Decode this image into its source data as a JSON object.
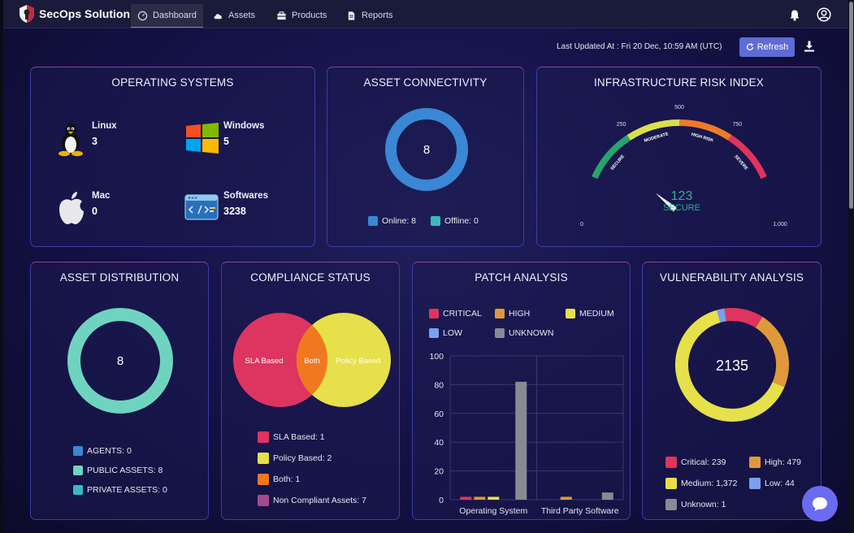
{
  "app": {
    "name": "SecOps Solution"
  },
  "nav": {
    "items": [
      {
        "label": "Dashboard",
        "icon": "gauge-icon"
      },
      {
        "label": "Assets",
        "icon": "cloud-icon"
      },
      {
        "label": "Products",
        "icon": "box-icon"
      },
      {
        "label": "Reports",
        "icon": "document-icon"
      }
    ]
  },
  "header": {
    "last_updated": "Last Updated At : Fri 20 Dec, 10:59 AM (UTC)",
    "refresh_label": "Refresh"
  },
  "operating_systems": {
    "title": "OPERATING SYSTEMS",
    "items": [
      {
        "name": "Linux",
        "count": "3",
        "icon": "linux-icon"
      },
      {
        "name": "Windows",
        "count": "5",
        "icon": "windows-icon"
      },
      {
        "name": "Mac",
        "count": "0",
        "icon": "apple-icon"
      },
      {
        "name": "Softwares",
        "count": "3238",
        "icon": "code-window-icon"
      }
    ]
  },
  "asset_connectivity": {
    "title": "ASSET CONNECTIVITY",
    "total": "8",
    "legend": [
      {
        "label": "Online: 8",
        "color": "#3a87d4",
        "value": 8
      },
      {
        "label": "Offline: 0",
        "color": "#3ab8b8",
        "value": 0
      }
    ]
  },
  "risk_index": {
    "title": "INFRASTRUCTURE RISK INDEX",
    "value": 123,
    "value_text": "123",
    "status": "SECURE",
    "max": 1000,
    "ticks": [
      "0",
      "250",
      "500",
      "750",
      "1,000"
    ],
    "bands": [
      {
        "label": "SECURE",
        "color": "#27a36b"
      },
      {
        "label": "MODERATE",
        "color": "#d9e04a"
      },
      {
        "label": "HIGH RISK",
        "color": "#ee7b2a"
      },
      {
        "label": "SEVERE",
        "color": "#e0335e"
      }
    ]
  },
  "asset_distribution": {
    "title": "ASSET DISTRIBUTION",
    "total": "8",
    "legend": [
      {
        "label": "AGENTS: 0",
        "color": "#3a87d4"
      },
      {
        "label": "PUBLIC ASSETS: 8",
        "color": "#6fd4bf"
      },
      {
        "label": "PRIVATE ASSETS: 0",
        "color": "#3ab8c8"
      }
    ]
  },
  "compliance": {
    "title": "COMPLIANCE STATUS",
    "venn": {
      "left": "SLA Based",
      "middle": "Both",
      "right": "Policy Based"
    },
    "legend": [
      {
        "label": "SLA Based: 1",
        "color": "#e0335e"
      },
      {
        "label": "Policy Based: 2",
        "color": "#e6e04a"
      },
      {
        "label": "Both: 1",
        "color": "#f07820"
      },
      {
        "label": "Non Compliant Assets: 7",
        "color": "#a24a8c"
      }
    ]
  },
  "patch_analysis": {
    "title": "PATCH ANALYSIS",
    "legend": [
      {
        "label": "CRITICAL",
        "color": "#e0335e"
      },
      {
        "label": "HIGH",
        "color": "#e0993a"
      },
      {
        "label": "MEDIUM",
        "color": "#e6e04a"
      },
      {
        "label": "LOW",
        "color": "#7aa0f0"
      },
      {
        "label": "UNKNOWN",
        "color": "#8a8a92"
      }
    ]
  },
  "chart_data": {
    "type": "bar",
    "categories": [
      "Operating System",
      "Third Party Software"
    ],
    "series": [
      {
        "name": "CRITICAL",
        "color": "#e0335e",
        "values": [
          2,
          0
        ]
      },
      {
        "name": "HIGH",
        "color": "#e0993a",
        "values": [
          2,
          2
        ]
      },
      {
        "name": "MEDIUM",
        "color": "#e6e04a",
        "values": [
          2,
          0
        ]
      },
      {
        "name": "LOW",
        "color": "#7aa0f0",
        "values": [
          0,
          0
        ]
      },
      {
        "name": "UNKNOWN",
        "color": "#8a8a92",
        "values": [
          82,
          5
        ]
      }
    ],
    "ylim": [
      0,
      100
    ],
    "yticks": [
      0,
      20,
      40,
      60,
      80,
      100
    ],
    "title": "PATCH ANALYSIS"
  },
  "vulnerability": {
    "title": "VULNERABILITY ANALYSIS",
    "total": "2135",
    "legend": [
      {
        "label": "Critical: 239",
        "color": "#e0335e",
        "value": 239
      },
      {
        "label": "High: 479",
        "color": "#e0993a",
        "value": 479
      },
      {
        "label": "Medium: 1,372",
        "color": "#e6e04a",
        "value": 1372
      },
      {
        "label": "Low: 44",
        "color": "#7aa0f0",
        "value": 44
      },
      {
        "label": "Unknown: 1",
        "color": "#8a8a92",
        "value": 1
      }
    ]
  }
}
